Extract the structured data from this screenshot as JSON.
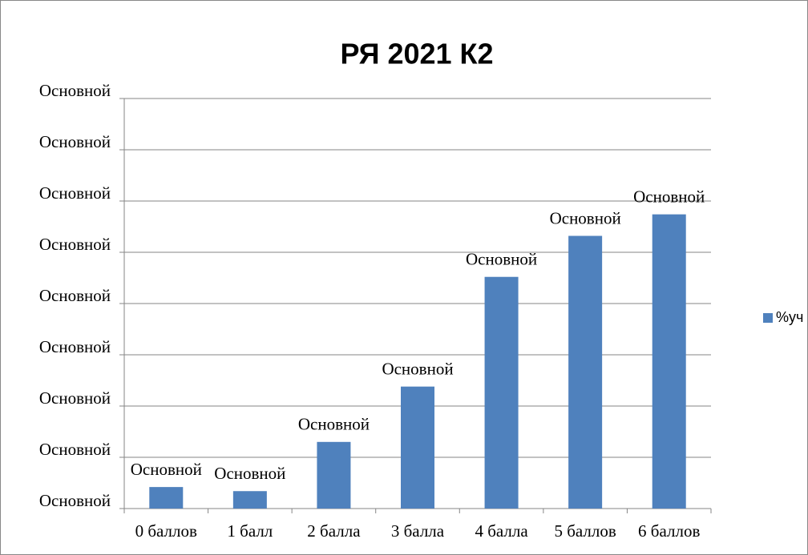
{
  "chart_data": {
    "type": "bar",
    "title": "РЯ 2021 К2",
    "categories": [
      "0 баллов",
      "1 балл",
      "2 балла",
      "3 балла",
      "4 балла",
      "5 баллов",
      "6 баллов"
    ],
    "series": [
      {
        "name": "%уч",
        "color": "#4f81bd",
        "values": [
          2.1,
          1.7,
          6.5,
          11.9,
          22.6,
          26.6,
          28.7
        ],
        "value_labels": [
          "Основной",
          "Основной",
          "Основной",
          "Основной",
          "Основной",
          "Основной",
          "Основной"
        ]
      }
    ],
    "ylim": [
      0,
      40
    ],
    "yticks": [
      {
        "value": 0,
        "label": "Основной"
      },
      {
        "value": 5,
        "label": "Основной"
      },
      {
        "value": 10,
        "label": "Основной"
      },
      {
        "value": 15,
        "label": "Основной"
      },
      {
        "value": 20,
        "label": "Основной"
      },
      {
        "value": 25,
        "label": "Основной"
      },
      {
        "value": 30,
        "label": "Основной"
      },
      {
        "value": 35,
        "label": "Основной"
      },
      {
        "value": 40,
        "label": "Основной"
      }
    ],
    "grid": true,
    "legend": "right"
  }
}
